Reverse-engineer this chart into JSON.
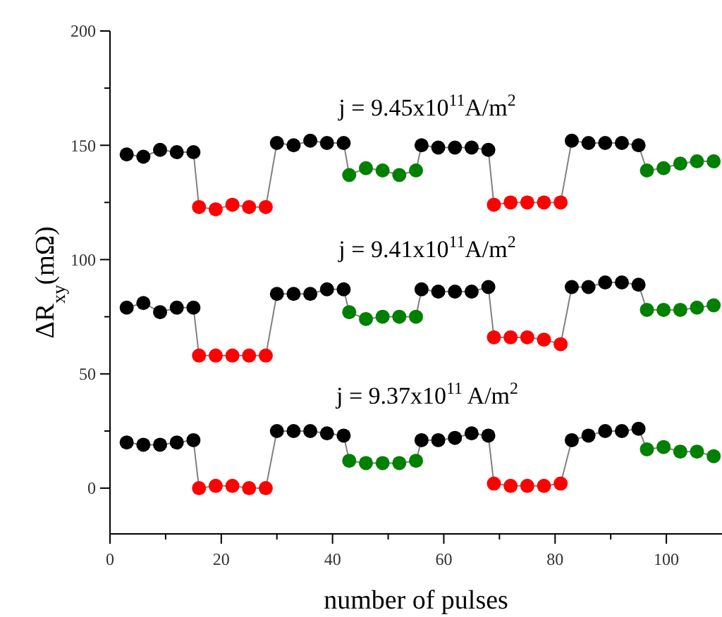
{
  "chart_data": {
    "type": "line",
    "xlabel": "number of pulses",
    "ylabel": "ΔR$_{xy}$(mΩ)",
    "xlim": [
      0,
      110
    ],
    "ylim": [
      -20,
      200
    ],
    "xticks": [
      0,
      {
        "value": 10,
        "label": null
      },
      20,
      {
        "value": 30,
        "label": null
      },
      40,
      {
        "value": 50,
        "label": null
      },
      60,
      {
        "value": 70,
        "label": null
      },
      80,
      {
        "value": 90,
        "label": null
      },
      100
    ],
    "yticks": [
      0,
      {
        "value": 25,
        "label": null
      },
      50,
      {
        "value": 75,
        "label": null
      },
      100,
      {
        "value": 125,
        "label": null
      },
      150,
      {
        "value": 175,
        "label": null
      },
      200
    ],
    "marker": "circle",
    "line_style": "solid",
    "grid": false,
    "x": [
      3,
      6,
      9,
      12,
      15,
      16,
      19,
      22,
      25,
      28,
      30,
      33,
      36,
      39,
      42,
      43,
      46,
      49,
      52,
      55,
      56,
      59,
      62,
      65,
      68,
      69,
      72,
      75,
      78,
      81,
      83,
      86,
      89,
      92,
      95,
      96.5,
      99.5,
      102.5,
      105.5,
      108.5
    ],
    "series": [
      {
        "name": "j = 9.45x10$^{11}$A/m$^{2}$",
        "color": "#808080",
        "colors": [
          "#000000",
          "#000000",
          "#000000",
          "#000000",
          "#000000",
          "#ff0000",
          "#ff0000",
          "#ff0000",
          "#ff0000",
          "#ff0000",
          "#000000",
          "#000000",
          "#000000",
          "#000000",
          "#000000",
          "#008000",
          "#008000",
          "#008000",
          "#008000",
          "#008000",
          "#000000",
          "#000000",
          "#000000",
          "#000000",
          "#000000",
          "#ff0000",
          "#ff0000",
          "#ff0000",
          "#ff0000",
          "#ff0000",
          "#000000",
          "#000000",
          "#000000",
          "#000000",
          "#000000",
          "#008000",
          "#008000",
          "#008000",
          "#008000",
          "#008000"
        ],
        "values": [
          146,
          145,
          148,
          147,
          147,
          123,
          122,
          124,
          123,
          123,
          151,
          150,
          152,
          151,
          151,
          137,
          140,
          139,
          137,
          139,
          150,
          149,
          149,
          149,
          148,
          124,
          125,
          125,
          125,
          125,
          152,
          151,
          151,
          151,
          150,
          139,
          140,
          142,
          143,
          143
        ]
      },
      {
        "name": "j = 9.41x10$^{11}$A/m$^{2}$",
        "color": "#808080",
        "colors": [
          "#000000",
          "#000000",
          "#000000",
          "#000000",
          "#000000",
          "#ff0000",
          "#ff0000",
          "#ff0000",
          "#ff0000",
          "#ff0000",
          "#000000",
          "#000000",
          "#000000",
          "#000000",
          "#000000",
          "#008000",
          "#008000",
          "#008000",
          "#008000",
          "#008000",
          "#000000",
          "#000000",
          "#000000",
          "#000000",
          "#000000",
          "#ff0000",
          "#ff0000",
          "#ff0000",
          "#ff0000",
          "#ff0000",
          "#000000",
          "#000000",
          "#000000",
          "#000000",
          "#000000",
          "#008000",
          "#008000",
          "#008000",
          "#008000",
          "#008000"
        ],
        "values": [
          79,
          81,
          77,
          79,
          79,
          58,
          58,
          58,
          58,
          58,
          85,
          85,
          85,
          87,
          87,
          77,
          74,
          75,
          75,
          75,
          87,
          86,
          86,
          86,
          88,
          66,
          66,
          66,
          65,
          63,
          88,
          88,
          90,
          90,
          89,
          78,
          78,
          78,
          79,
          80
        ]
      },
      {
        "name": "j = 9.37x10$^{11}$ A/m$^{2}$",
        "color": "#808080",
        "colors": [
          "#000000",
          "#000000",
          "#000000",
          "#000000",
          "#000000",
          "#ff0000",
          "#ff0000",
          "#ff0000",
          "#ff0000",
          "#ff0000",
          "#000000",
          "#000000",
          "#000000",
          "#000000",
          "#000000",
          "#008000",
          "#008000",
          "#008000",
          "#008000",
          "#008000",
          "#000000",
          "#000000",
          "#000000",
          "#000000",
          "#000000",
          "#ff0000",
          "#ff0000",
          "#ff0000",
          "#ff0000",
          "#ff0000",
          "#000000",
          "#000000",
          "#000000",
          "#000000",
          "#000000",
          "#008000",
          "#008000",
          "#008000",
          "#008000",
          "#008000"
        ],
        "values": [
          20,
          19,
          19,
          20,
          21,
          0,
          1,
          1,
          0,
          0,
          25,
          25,
          25,
          24,
          23,
          12,
          11,
          11,
          11,
          12,
          21,
          21,
          22,
          24,
          23,
          2,
          1,
          1,
          1,
          2,
          21,
          23,
          25,
          25,
          26,
          17,
          18,
          16,
          16,
          14
        ]
      }
    ]
  }
}
